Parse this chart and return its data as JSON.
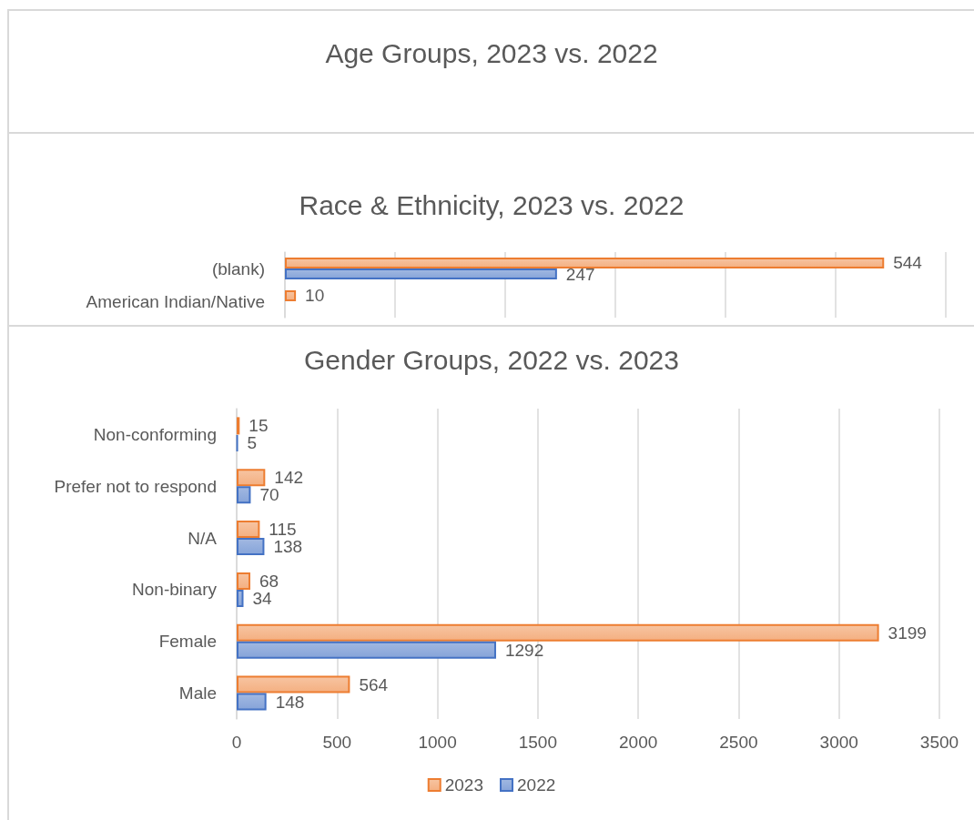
{
  "chart_data": [
    {
      "type": "other",
      "title": "Age Groups, 2023 vs. 2022"
    },
    {
      "type": "bar",
      "orientation": "horizontal",
      "title": "Race & Ethnicity, 2023 vs. 2022",
      "categories": [
        "(blank)",
        "American Indian/Native"
      ],
      "series": [
        {
          "color": "#ed7d31",
          "values": [
            544,
            10
          ]
        },
        {
          "color": "#4472c4",
          "values": [
            247,
            null
          ]
        }
      ],
      "tick_labels": "y",
      "grid": "x",
      "data_labels": true
    },
    {
      "type": "bar",
      "orientation": "horizontal",
      "title": "Gender Groups, 2022 vs. 2023",
      "categories": [
        "Non-conforming",
        "Prefer not to respond",
        "N/A",
        "Non-binary",
        "Female",
        "Male"
      ],
      "series": [
        {
          "name": "2023",
          "color": "#ed7d31",
          "values": [
            15,
            142,
            115,
            68,
            3199,
            564
          ]
        },
        {
          "name": "2022",
          "color": "#4472c4",
          "values": [
            5,
            70,
            138,
            34,
            1292,
            148
          ]
        }
      ],
      "xlim": [
        0,
        3500
      ],
      "xticks": [
        0,
        500,
        1000,
        1500,
        2000,
        2500,
        3000,
        3500
      ],
      "grid": "x",
      "legend": "bottom",
      "data_labels": true
    }
  ]
}
